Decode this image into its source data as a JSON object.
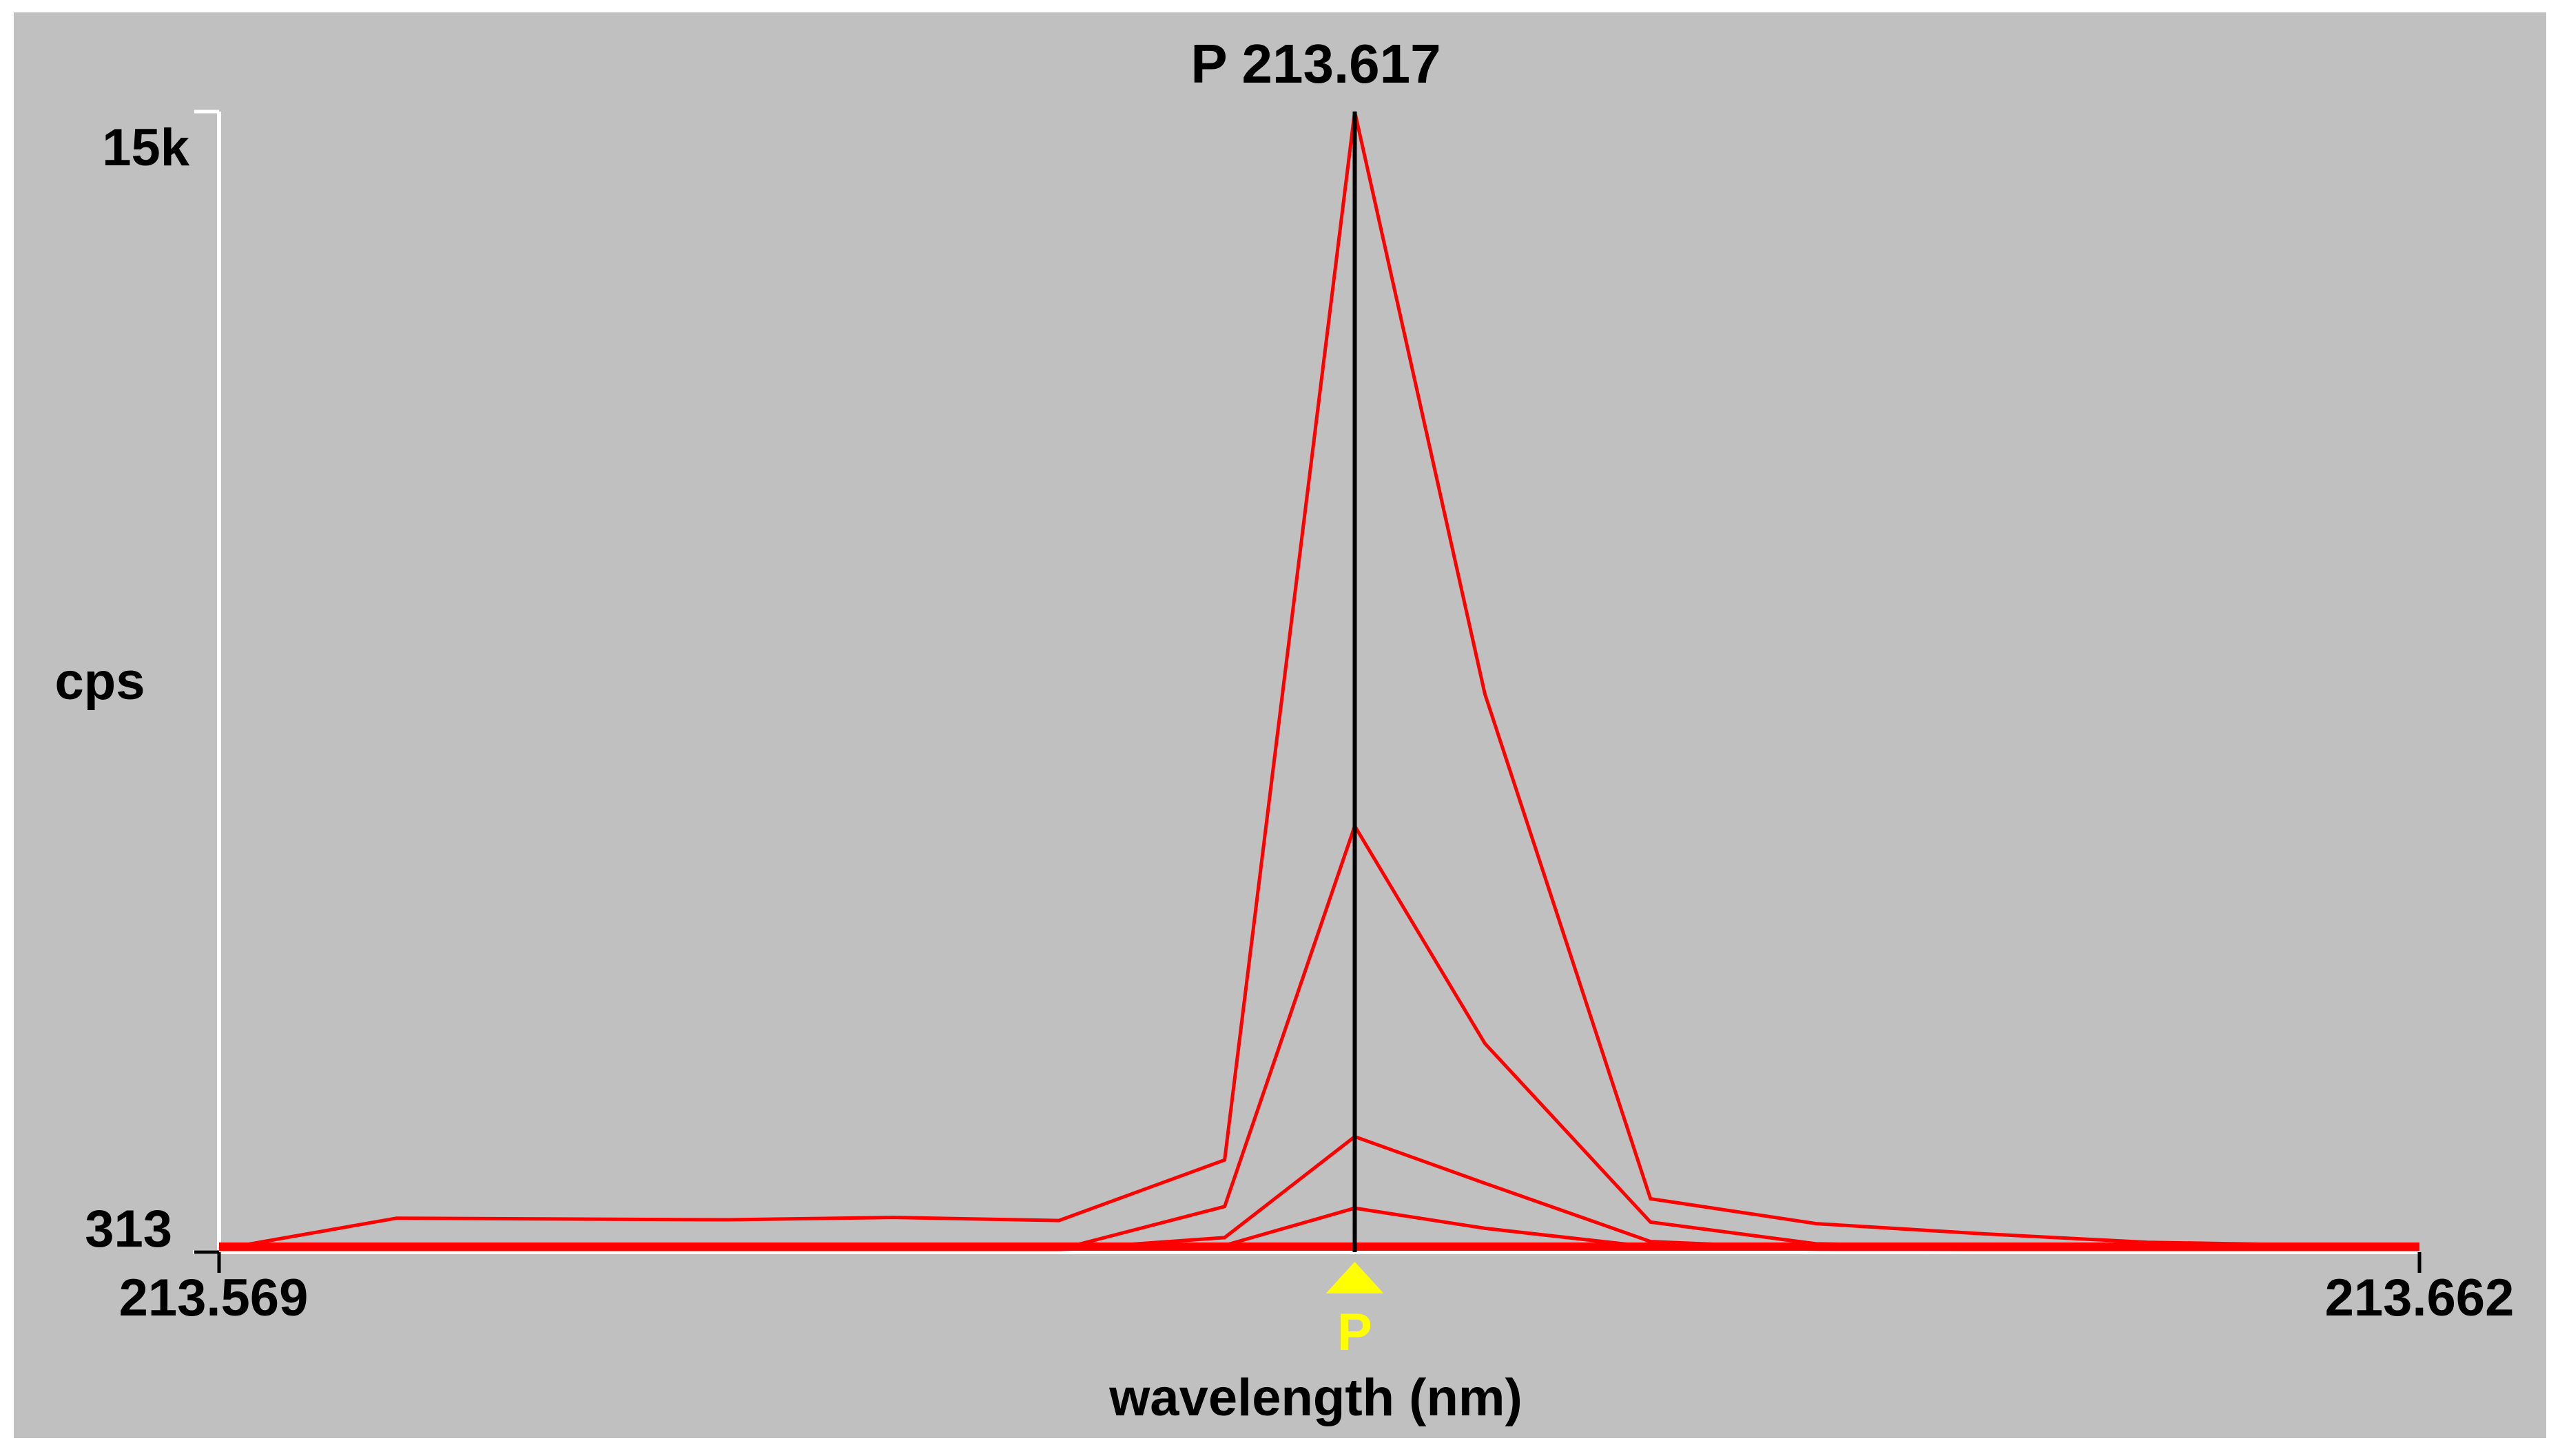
{
  "chart_data": {
    "type": "line",
    "title": "P 213.617",
    "xlabel": "wavelength (nm)",
    "ylabel": "cps",
    "xlim": [
      213.569,
      213.662
    ],
    "ylim": [
      313,
      15000
    ],
    "x_tick_labels": [
      "213.569",
      "213.662"
    ],
    "y_tick_labels": [
      "313",
      "15k"
    ],
    "grid": false,
    "legend": "none",
    "peak_marker": {
      "label": "P",
      "x": 213.617,
      "color": "#ffff00"
    },
    "series_color": "#ff0000",
    "x": [
      213.569,
      213.5765,
      213.5835,
      213.5905,
      213.5975,
      213.6045,
      213.6115,
      213.617,
      213.6225,
      213.6295,
      213.6365,
      213.6435,
      213.6505,
      213.662
    ],
    "series": [
      {
        "values": [
          330,
          750,
          740,
          730,
          760,
          720,
          1500,
          15000,
          7500,
          1000,
          680,
          550,
          440,
          380
        ]
      },
      {
        "values": [
          330,
          340,
          330,
          320,
          330,
          340,
          900,
          5800,
          3000,
          700,
          420,
          380,
          360,
          340
        ]
      },
      {
        "values": [
          320,
          340,
          330,
          320,
          330,
          340,
          500,
          1800,
          1200,
          450,
          360,
          350,
          340,
          330
        ]
      },
      {
        "values": [
          320,
          330,
          320,
          320,
          330,
          340,
          400,
          880,
          620,
          380,
          350,
          340,
          330,
          330
        ]
      }
    ]
  }
}
